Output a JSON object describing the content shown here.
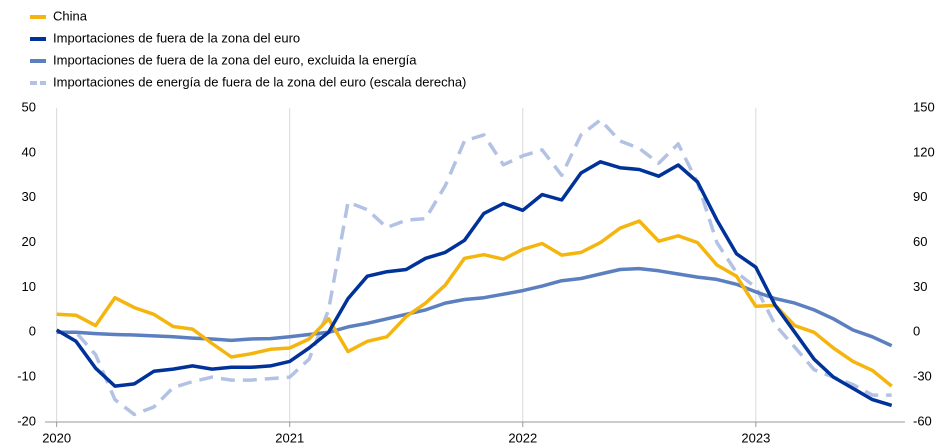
{
  "chart_data": {
    "type": "line",
    "x": [
      2020,
      2020.083,
      2020.167,
      2020.25,
      2020.333,
      2020.417,
      2020.5,
      2020.583,
      2020.667,
      2020.75,
      2020.833,
      2020.917,
      2021,
      2021.083,
      2021.167,
      2021.25,
      2021.333,
      2021.417,
      2021.5,
      2021.583,
      2021.667,
      2021.75,
      2021.833,
      2021.917,
      2022,
      2022.083,
      2022.167,
      2022.25,
      2022.333,
      2022.417,
      2022.5,
      2022.583,
      2022.667,
      2022.75,
      2022.833,
      2022.917,
      2023,
      2023.083,
      2023.167,
      2023.25,
      2023.333,
      2023.417,
      2023.5,
      2023.583
    ],
    "xlim": [
      2019.95,
      2023.64
    ],
    "xticks": [
      2020,
      2021,
      2022,
      2023
    ],
    "ylim": [
      -20,
      50
    ],
    "yticks": [
      -20,
      -10,
      0,
      10,
      20,
      30,
      40,
      50
    ],
    "y2lim": [
      -60,
      150
    ],
    "y2ticks": [
      -60,
      -30,
      0,
      30,
      60,
      90,
      120,
      150
    ],
    "grid": "x",
    "legend": "top-left",
    "series": [
      {
        "name": "China",
        "color": "#f5b50f",
        "values": [
          4,
          3.8,
          1.5,
          7.7,
          5.5,
          4,
          1.3,
          0.7,
          -2.5,
          -5.5,
          -4.8,
          -3.8,
          -3.5,
          -1.5,
          3,
          -4.3,
          -2,
          -1,
          3.5,
          6.5,
          10.5,
          16.5,
          17.3,
          16.3,
          18.5,
          19.8,
          17.2,
          17.8,
          20,
          23.2,
          24.8,
          20.3,
          21.5,
          20,
          15,
          12.5,
          5.8,
          6,
          1.5,
          0,
          -3.5,
          -6.5,
          -8.5,
          -12
        ]
      },
      {
        "name": "Importaciones de fuera de la zona del euro",
        "color": "#003299",
        "values": [
          0.5,
          -2,
          -8,
          -12,
          -11.5,
          -8.7,
          -8.2,
          -7.5,
          -8.2,
          -7.8,
          -7.8,
          -7.5,
          -6.5,
          -3.5,
          0,
          7.5,
          12.5,
          13.5,
          14,
          16.5,
          17.8,
          20.5,
          26.5,
          28.7,
          27.2,
          30.7,
          29.5,
          35.5,
          38,
          36.7,
          36.3,
          34.8,
          37.3,
          33.5,
          25,
          17.5,
          14.5,
          6,
          0,
          -6,
          -10,
          -12.5,
          -15,
          -16.3
        ]
      },
      {
        "name": "Importaciones de fuera de la zona del euro, excluida la energía",
        "color": "#5c7fbf",
        "values": [
          0,
          0,
          -0.3,
          -0.5,
          -0.6,
          -0.8,
          -1,
          -1.3,
          -1.5,
          -1.8,
          -1.5,
          -1.4,
          -1,
          -0.5,
          0,
          1.2,
          2,
          3,
          4,
          5,
          6.5,
          7.3,
          7.7,
          8.5,
          9.3,
          10.3,
          11.5,
          12,
          13,
          14,
          14.2,
          13.7,
          13,
          12.3,
          11.8,
          10.7,
          9,
          7.5,
          6.5,
          5,
          3,
          0.5,
          -1,
          -3
        ]
      },
      {
        "name": "Importaciones de energía de fuera de la zona del euro (escala derecha)",
        "color": "#b3c2e4",
        "axis": "y2",
        "style": "dashed",
        "values": [
          0,
          0,
          -15,
          -45,
          -55,
          -50,
          -37,
          -33,
          -30,
          -32,
          -32,
          -31,
          -30,
          -18,
          15,
          87,
          82,
          70,
          75,
          76,
          98,
          128,
          132,
          112,
          118,
          122,
          105,
          132,
          142,
          128,
          123,
          113,
          126,
          100,
          60,
          40,
          30,
          5,
          -10,
          -25,
          -30,
          -35,
          -42,
          -42
        ]
      }
    ]
  }
}
